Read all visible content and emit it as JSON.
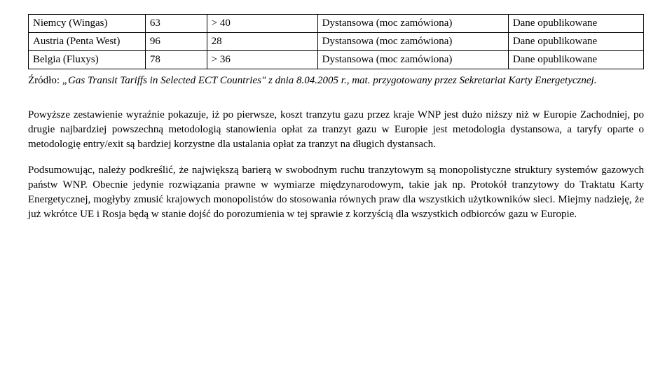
{
  "table": {
    "rows": [
      {
        "c1": "Niemcy (Wingas)",
        "c2": "63",
        "c3": "> 40",
        "c4": "Dystansowa (moc zamówiona)",
        "c5": "Dane opublikowane"
      },
      {
        "c1": "Austria (Penta West)",
        "c2": "96",
        "c3": "28",
        "c4": "Dystansowa (moc zamówiona)",
        "c5": "Dane opublikowane"
      },
      {
        "c1": "Belgia (Fluxys)",
        "c2": "78",
        "c3": "> 36",
        "c4": "Dystansowa (moc zamówiona)",
        "c5": "Dane opublikowane"
      }
    ]
  },
  "source": {
    "prefix_plain": "Źródło: ",
    "ital_part": "„Gas Transit Tariffs in Selected ECT Countries\" z dnia 8.04.2005 r., mat. przygotowany przez Sekretariat Karty Energetycznej."
  },
  "paragraphs": {
    "p1": "Powyższe zestawienie wyraźnie pokazuje, iż po pierwsze, koszt tranzytu gazu przez kraje WNP jest dużo niższy niż w Europie Zachodniej, po drugie najbardziej powszechną metodologią stanowienia opłat za tranzyt gazu w Europie jest metodologia dystansowa, a taryfy oparte o metodologię entry/exit są bardziej korzystne dla ustalania opłat za tranzyt na długich dystansach.",
    "p2": "Podsumowując, należy podkreślić, że największą barierą w swobodnym ruchu tranzytowym są monopolistyczne struktury systemów gazowych państw WNP. Obecnie jedynie rozwiązania prawne w wymiarze międzynarodowym, takie jak np. Protokół tranzytowy do Traktatu Karty Energetycznej, mogłyby zmusić krajowych monopolistów do stosowania równych praw dla wszystkich użytkowników sieci. Miejmy nadzieję, że już wkrótce UE i Rosja będą w stanie dojść do porozumienia w tej sprawie z korzyścią dla wszystkich odbiorców gazu w Europie."
  }
}
